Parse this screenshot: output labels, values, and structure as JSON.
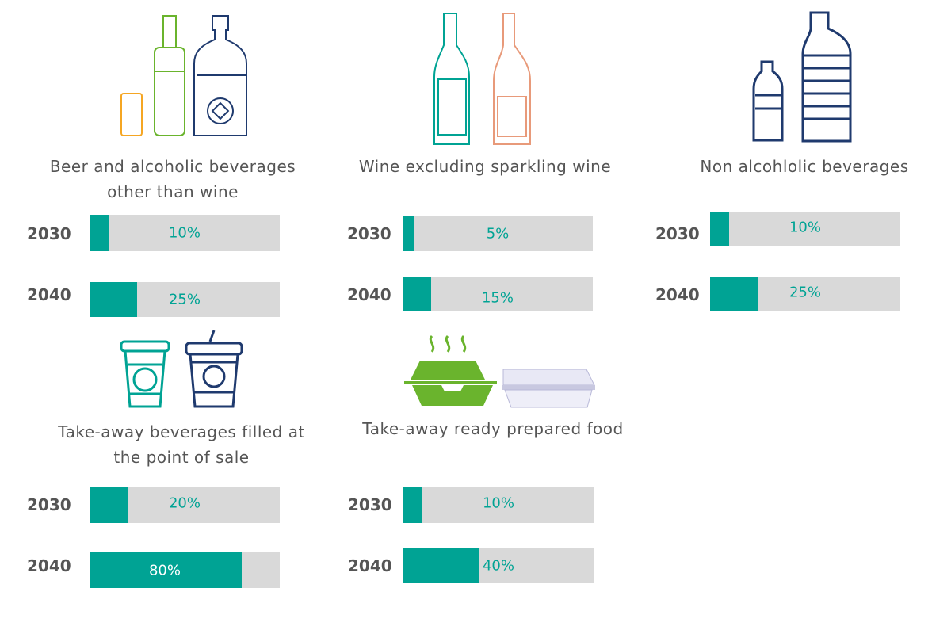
{
  "colors": {
    "fill": "#00a394",
    "track": "#d9d9d9",
    "text": "#555555"
  },
  "chart_data": {
    "type": "bar",
    "orientation": "horizontal",
    "xlim": [
      0,
      100
    ],
    "unit": "%",
    "groups": [
      {
        "title": "Beer and alcoholic beverages other than wine",
        "icon": "beer-can-bottle-icon",
        "categories": [
          "2030",
          "2040"
        ],
        "values": [
          10,
          25
        ],
        "labels": [
          "10%",
          "25%"
        ]
      },
      {
        "title": "Wine excluding sparkling wine",
        "icon": "wine-bottles-icon",
        "categories": [
          "2030",
          "2040"
        ],
        "values": [
          5,
          15
        ],
        "labels": [
          "5%",
          "15%"
        ]
      },
      {
        "title": "Non alcohlolic beverages",
        "icon": "plastic-bottles-icon",
        "categories": [
          "2030",
          "2040"
        ],
        "values": [
          10,
          25
        ],
        "labels": [
          "10%",
          "25%"
        ]
      },
      {
        "title": "Take-away beverages filled at the point of sale",
        "icon": "takeaway-cups-icon",
        "categories": [
          "2030",
          "2040"
        ],
        "values": [
          20,
          80
        ],
        "labels": [
          "20%",
          "80%"
        ]
      },
      {
        "title": "Take-away ready prepared food",
        "icon": "food-containers-icon",
        "categories": [
          "2030",
          "2040"
        ],
        "values": [
          10,
          40
        ],
        "labels": [
          "10%",
          "40%"
        ]
      }
    ]
  }
}
